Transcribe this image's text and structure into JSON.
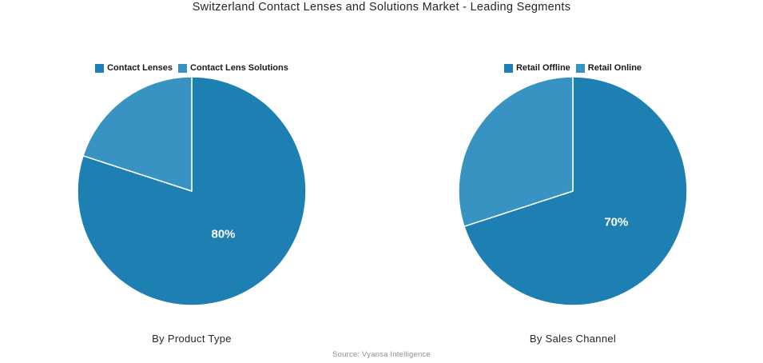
{
  "title": "Switzerland Contact Lenses and Solutions Market - Leading Segments",
  "source": "Source: Vyansa Intelligence",
  "colors": {
    "primary": "#1E7FB2",
    "secondary": "#3892C2",
    "label_text": "#ffffff",
    "title_text": "#262626",
    "source_text": "#8e8e8e"
  },
  "chart_data": [
    {
      "type": "pie",
      "title": "By Product Type",
      "labels": [
        "Contact Lenses",
        "Contact Lens Solutions"
      ],
      "values": [
        80,
        20
      ],
      "colors": [
        "#1E7FB2",
        "#3892C2"
      ],
      "data_labels": [
        "80%",
        ""
      ],
      "start_angle_deg": -90,
      "direction": "clockwise",
      "legend_position": "top"
    },
    {
      "type": "pie",
      "title": "By Sales Channel",
      "labels": [
        "Retail Offline",
        "Retail Online"
      ],
      "values": [
        70,
        30
      ],
      "colors": [
        "#1E7FB2",
        "#3892C2"
      ],
      "data_labels": [
        "70%",
        ""
      ],
      "start_angle_deg": -90,
      "direction": "clockwise",
      "legend_position": "top"
    }
  ]
}
